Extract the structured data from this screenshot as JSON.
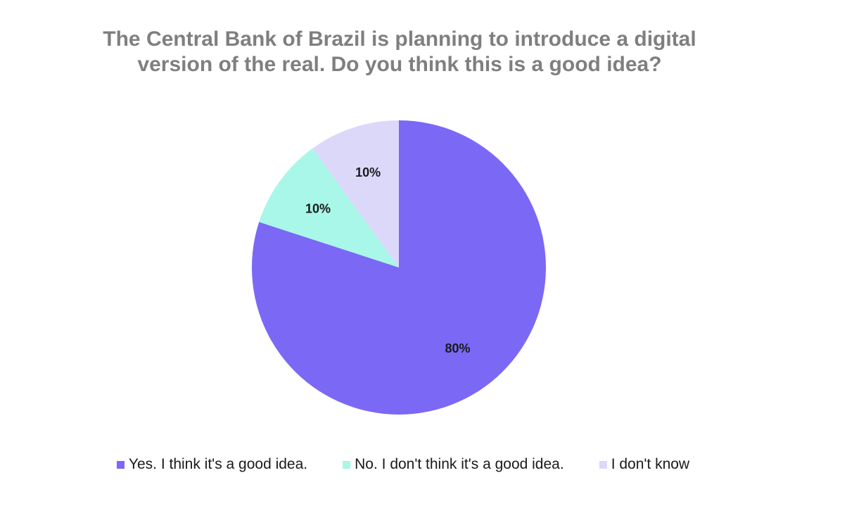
{
  "chart_data": {
    "type": "pie",
    "title_lines": [
      "The Central Bank of Brazil is planning to introduce a digital",
      "version of the real. Do you think this is a good idea?"
    ],
    "slices": [
      {
        "label": "Yes. I think it's a good idea.",
        "value": 80,
        "value_label": "80%",
        "color": "#7b68f5"
      },
      {
        "label": "No. I don't think it's a good idea.",
        "value": 10,
        "value_label": "10%",
        "color": "#a8f7e8"
      },
      {
        "label": "I don't know",
        "value": 10,
        "value_label": "10%",
        "color": "#dcd8fa"
      }
    ],
    "legend_position": "bottom"
  }
}
